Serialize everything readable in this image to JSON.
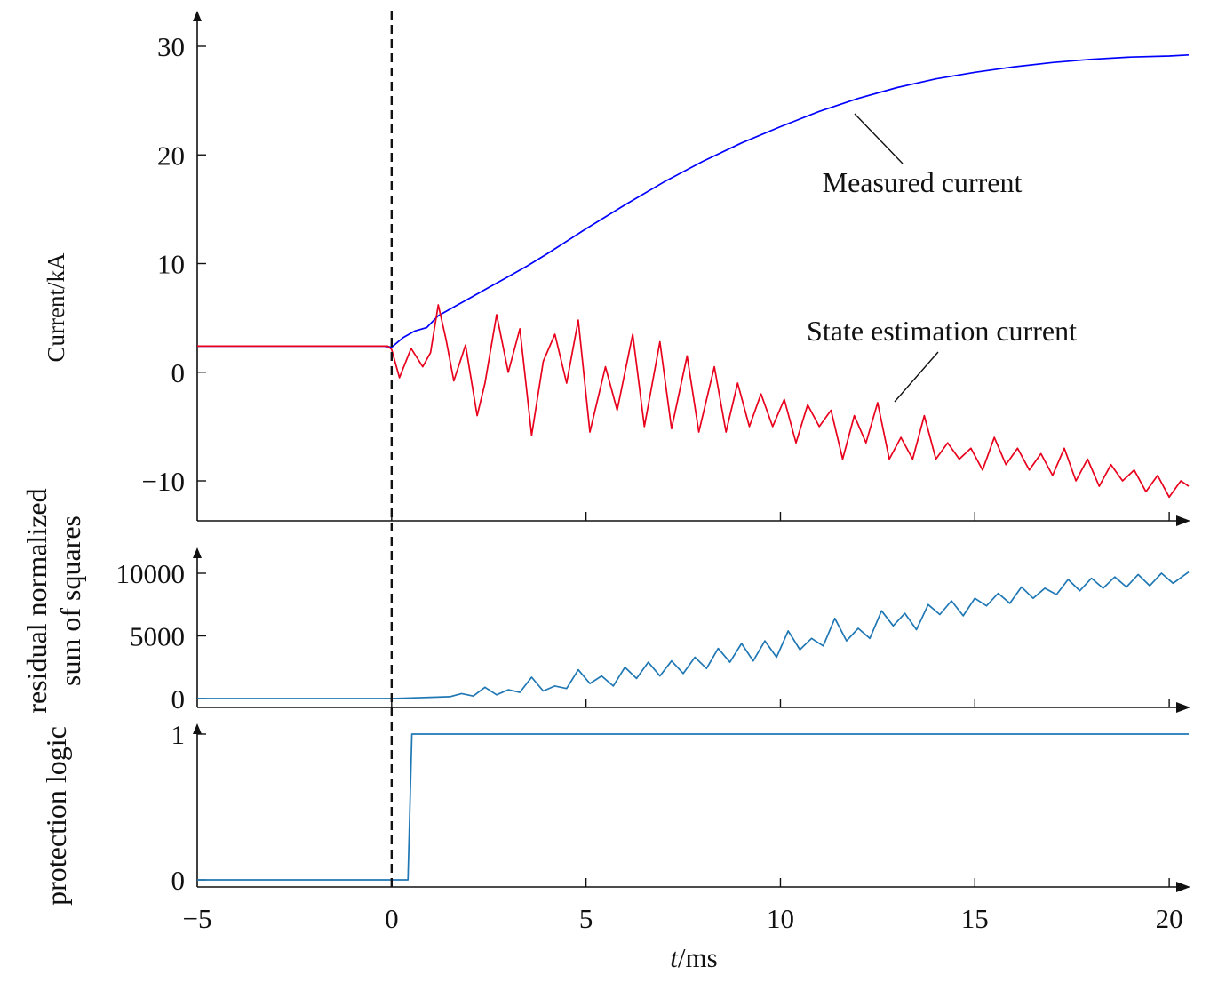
{
  "chart_data": [
    {
      "type": "line",
      "ylabel": "Current/kA",
      "xlim": [
        -5,
        20.5
      ],
      "ylim": [
        -13.6,
        33
      ],
      "yticks": [
        30,
        20,
        10,
        0,
        -10
      ],
      "ytick_labels": [
        "30",
        "20",
        "10",
        "0",
        "−10"
      ],
      "series": [
        {
          "name": "Measured current",
          "color": "#0000ff",
          "x": [
            -5,
            -4,
            -3,
            -2,
            -1,
            -0.2,
            0,
            0.3,
            0.6,
            0.9,
            1.2,
            1.6,
            2,
            2.5,
            3,
            3.5,
            4,
            5,
            6,
            7,
            8,
            9,
            10,
            11,
            12,
            13,
            14,
            15,
            16,
            17,
            18,
            19,
            20,
            20.5
          ],
          "values": [
            2.4,
            2.4,
            2.4,
            2.4,
            2.4,
            2.4,
            2.3,
            3.2,
            3.8,
            4.1,
            5.2,
            6.0,
            6.8,
            7.8,
            8.8,
            9.8,
            10.9,
            13.2,
            15.4,
            17.5,
            19.4,
            21.1,
            22.6,
            24.0,
            25.2,
            26.2,
            27.0,
            27.6,
            28.1,
            28.5,
            28.8,
            29.0,
            29.1,
            29.2
          ]
        },
        {
          "name": "State estimation current",
          "color": "#e8001c",
          "x": [
            -5,
            -4,
            -3,
            -2,
            -1,
            -0.1,
            0,
            0.2,
            0.5,
            0.8,
            1.0,
            1.2,
            1.4,
            1.6,
            1.9,
            2.2,
            2.4,
            2.7,
            3.0,
            3.3,
            3.6,
            3.9,
            4.2,
            4.5,
            4.8,
            5.1,
            5.5,
            5.8,
            6.2,
            6.5,
            6.9,
            7.2,
            7.6,
            7.9,
            8.3,
            8.6,
            8.9,
            9.2,
            9.5,
            9.8,
            10.1,
            10.4,
            10.7,
            11.0,
            11.3,
            11.6,
            11.9,
            12.2,
            12.5,
            12.8,
            13.1,
            13.4,
            13.7,
            14.0,
            14.3,
            14.6,
            14.9,
            15.2,
            15.5,
            15.8,
            16.1,
            16.4,
            16.7,
            17.0,
            17.3,
            17.6,
            17.9,
            18.2,
            18.5,
            18.8,
            19.1,
            19.4,
            19.7,
            20.0,
            20.3,
            20.5
          ],
          "values": [
            2.4,
            2.4,
            2.4,
            2.4,
            2.4,
            2.4,
            2.1,
            -0.5,
            2.2,
            0.5,
            1.8,
            6.2,
            3.0,
            -0.8,
            2.5,
            -4.0,
            -1.0,
            5.3,
            0.0,
            4.0,
            -5.8,
            1.0,
            3.5,
            -1.0,
            4.8,
            -5.5,
            0.5,
            -3.5,
            3.5,
            -5.0,
            2.8,
            -5.2,
            1.5,
            -5.5,
            0.5,
            -5.5,
            -1.0,
            -5.0,
            -2.0,
            -5.0,
            -2.5,
            -6.5,
            -3.0,
            -5.0,
            -3.5,
            -8.0,
            -4.0,
            -6.5,
            -2.8,
            -8.0,
            -6.0,
            -8.0,
            -4.0,
            -8.0,
            -6.5,
            -8.0,
            -7.0,
            -9.0,
            -6.0,
            -8.5,
            -7.0,
            -9.0,
            -7.5,
            -9.5,
            -7.0,
            -10.0,
            -8.0,
            -10.5,
            -8.5,
            -10.0,
            -9.0,
            -11.0,
            -9.5,
            -11.5,
            -10.0,
            -10.5
          ]
        }
      ],
      "annotations": [
        {
          "text": "Measured current",
          "target_series": "Measured current"
        },
        {
          "text": "State estimation current",
          "target_series": "State estimation current"
        }
      ],
      "vline_x": 0,
      "vline_style": "dashed"
    },
    {
      "type": "line",
      "ylabel_lines": [
        "residual normalized",
        "sum of squares"
      ],
      "xlim": [
        -5,
        20.5
      ],
      "ylim": [
        0,
        11700
      ],
      "yticks": [
        10000,
        5000,
        0
      ],
      "ytick_labels": [
        "10000",
        "5000",
        "0"
      ],
      "series": [
        {
          "color": "#1f77b4",
          "x": [
            -5,
            -4,
            -3,
            -2,
            -1,
            0,
            0.5,
            1.0,
            1.5,
            1.8,
            2.1,
            2.4,
            2.7,
            3.0,
            3.3,
            3.6,
            3.9,
            4.2,
            4.5,
            4.8,
            5.1,
            5.4,
            5.7,
            6.0,
            6.3,
            6.6,
            6.9,
            7.2,
            7.5,
            7.8,
            8.1,
            8.4,
            8.7,
            9.0,
            9.3,
            9.6,
            9.9,
            10.2,
            10.5,
            10.8,
            11.1,
            11.4,
            11.7,
            12.0,
            12.3,
            12.6,
            12.9,
            13.2,
            13.5,
            13.8,
            14.1,
            14.4,
            14.7,
            15.0,
            15.3,
            15.6,
            15.9,
            16.2,
            16.5,
            16.8,
            17.1,
            17.4,
            17.7,
            18.0,
            18.3,
            18.6,
            18.9,
            19.2,
            19.5,
            19.8,
            20.1,
            20.5
          ],
          "values": [
            0,
            0,
            0,
            0,
            0,
            0,
            50,
            100,
            150,
            400,
            200,
            900,
            300,
            700,
            500,
            1700,
            600,
            1000,
            800,
            2300,
            1200,
            1800,
            1000,
            2500,
            1600,
            2900,
            1800,
            3000,
            2000,
            3300,
            2400,
            4000,
            2900,
            4400,
            3000,
            4600,
            3300,
            5400,
            3900,
            4800,
            4200,
            6400,
            4600,
            5600,
            4800,
            7000,
            5800,
            6800,
            5500,
            7500,
            6700,
            7800,
            6600,
            8000,
            7400,
            8400,
            7600,
            8900,
            8000,
            8800,
            8300,
            9500,
            8600,
            9600,
            8800,
            9700,
            8900,
            9900,
            9000,
            10000,
            9200,
            10100
          ]
        }
      ]
    },
    {
      "type": "line",
      "ylabel": "protection logic",
      "xlabel": "t/ms",
      "xlim": [
        -5,
        20.5
      ],
      "ylim": [
        0,
        1
      ],
      "yticks": [
        1,
        0
      ],
      "ytick_labels": [
        "1",
        "0"
      ],
      "xticks": [
        -5,
        0,
        5,
        10,
        15,
        20
      ],
      "xtick_labels": [
        "−5",
        "0",
        "5",
        "10",
        "15",
        "20"
      ],
      "series": [
        {
          "color": "#1f77b4",
          "x": [
            -5,
            0.42,
            0.52,
            20.5
          ],
          "values": [
            0,
            0,
            1,
            1
          ]
        }
      ]
    }
  ]
}
